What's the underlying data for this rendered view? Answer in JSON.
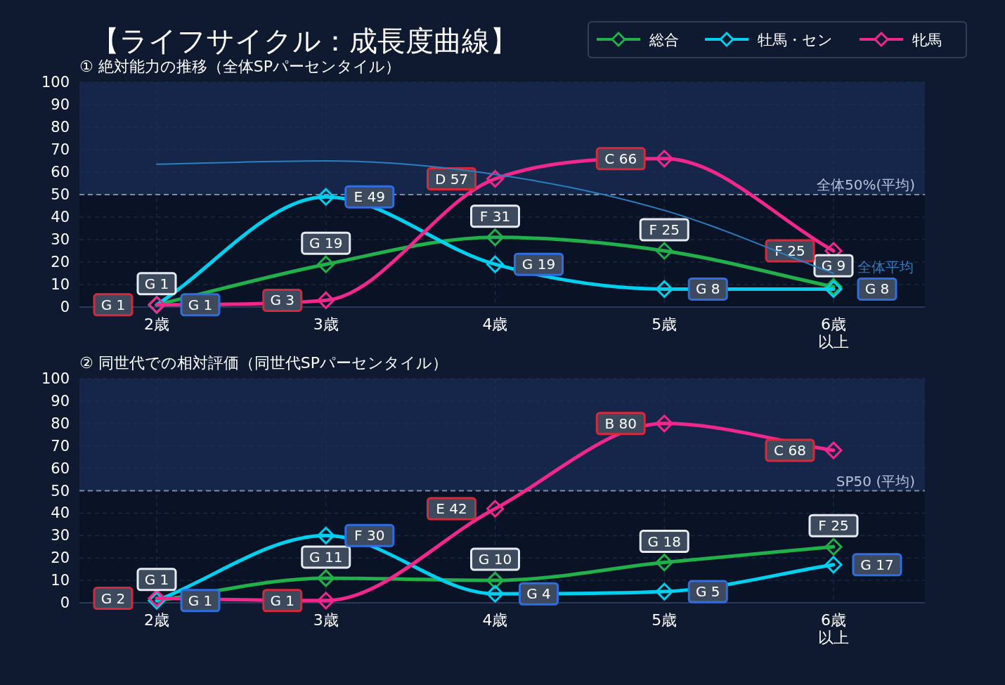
{
  "chart_data": [
    {
      "type": "line",
      "title": "【ライフサイクル：成長度曲線】",
      "subtitle": "① 絶対能力の推移（全体SPパーセンタイル）",
      "categories": [
        "2歳",
        "3歳",
        "4歳",
        "5歳",
        "6歳以上"
      ],
      "ylim": [
        0,
        100
      ],
      "yticks": [
        0,
        10,
        20,
        30,
        40,
        50,
        60,
        70,
        80,
        90,
        100
      ],
      "grid": true,
      "legend": "top right",
      "marker": "diamond",
      "series": [
        {
          "name": "全体平均",
          "color": "#2a7fc0",
          "values": [
            63.5,
            65,
            59,
            43,
            15
          ],
          "marker": "none"
        },
        {
          "name": "総合",
          "color": "#22b04b",
          "values": [
            1,
            19,
            31,
            25,
            9
          ],
          "value_labels": [
            "G 1",
            "G 19",
            "F 31",
            "F 25",
            "G 9"
          ]
        },
        {
          "name": "牡馬・セン",
          "color": "#00d0f0",
          "values": [
            1,
            49,
            19,
            8,
            8
          ],
          "value_labels": [
            "G 1",
            "E 49",
            "G 19",
            "G 8",
            "G 8"
          ]
        },
        {
          "name": "牝馬",
          "color": "#f0288c",
          "values": [
            1,
            3,
            57,
            66,
            25
          ],
          "value_labels": [
            "G 1",
            "G 3",
            "D 57",
            "C 66",
            "F 25"
          ]
        }
      ],
      "ref_lines": [
        {
          "axis": "y",
          "value": 50,
          "label": "全体50%(平均)",
          "line_style": "dashed"
        }
      ],
      "bands": [
        {
          "axis": "y",
          "from": 50,
          "to": 100,
          "color": "#15264a"
        }
      ]
    },
    {
      "type": "line",
      "title": "② 同世代での相対評価（同世代SPパーセンタイル）",
      "categories": [
        "2歳",
        "3歳",
        "4歳",
        "5歳",
        "6歳以上"
      ],
      "ylim": [
        0,
        100
      ],
      "yticks": [
        0,
        10,
        20,
        30,
        40,
        50,
        60,
        70,
        80,
        90,
        100
      ],
      "grid": true,
      "legend": false,
      "marker": "diamond",
      "series": [
        {
          "color": "#22b04b",
          "values": [
            1,
            11,
            10,
            18,
            25
          ],
          "value_labels": [
            "G 1",
            "G 11",
            "G 10",
            "G 18",
            "F 25"
          ]
        },
        {
          "color": "#00d0f0",
          "values": [
            1,
            30,
            4,
            5,
            17
          ],
          "value_labels": [
            "G 1",
            "F 30",
            "G 4",
            "G 5",
            "G 17"
          ]
        },
        {
          "color": "#f0288c",
          "values": [
            2,
            1,
            42,
            80,
            68
          ],
          "value_labels": [
            "G 2",
            "G 1",
            "E 42",
            "B 80",
            "C 68"
          ]
        }
      ],
      "ref_lines": [
        {
          "axis": "y",
          "value": 50,
          "label": "SP50 (平均)",
          "line_style": "dashed"
        }
      ],
      "bands": [
        {
          "axis": "y",
          "from": 50,
          "to": 100,
          "color": "#15264a"
        }
      ]
    }
  ]
}
